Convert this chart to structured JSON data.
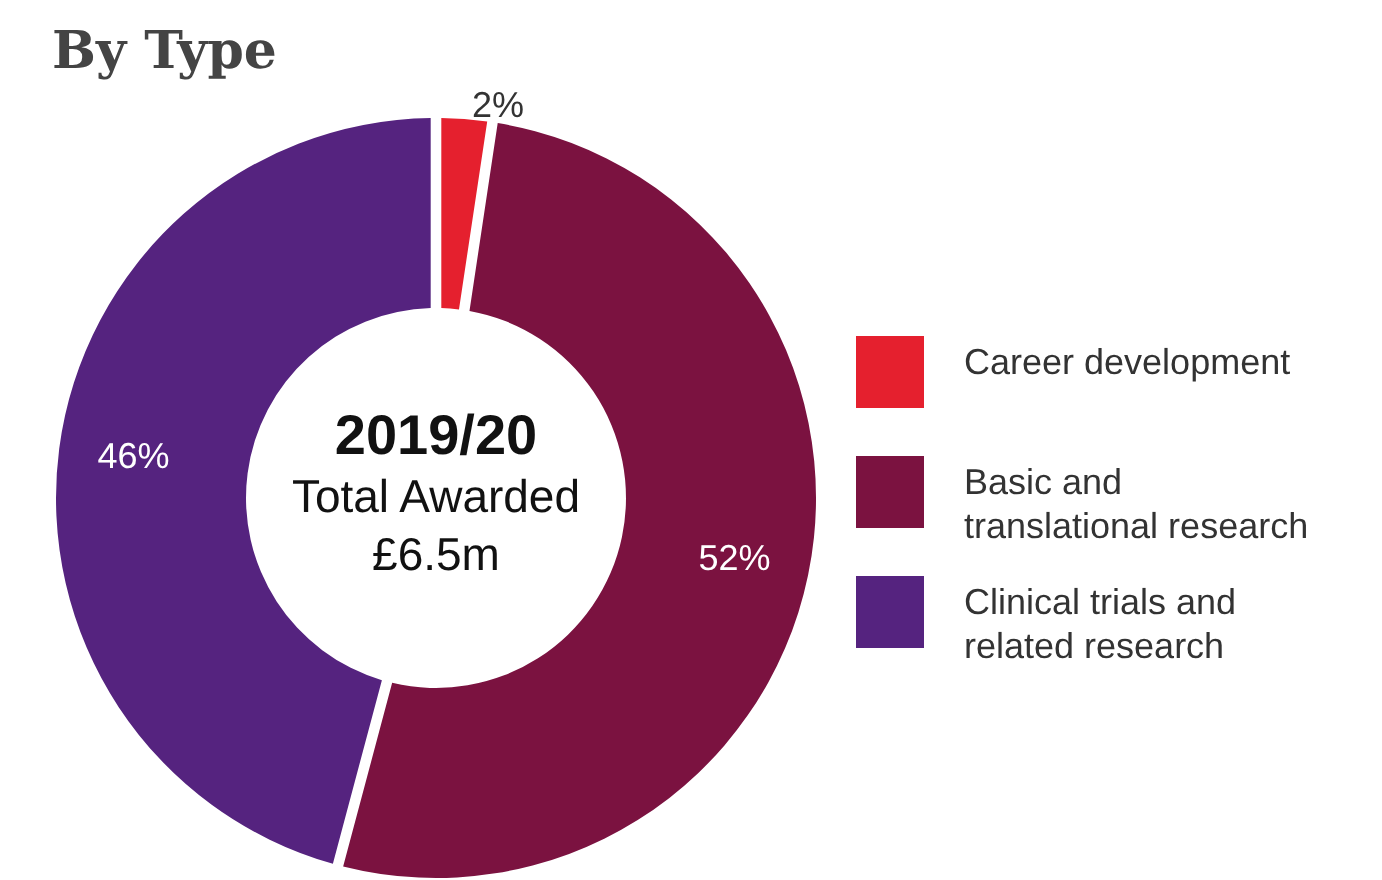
{
  "chart_data": {
    "type": "donut",
    "title": "By Type",
    "categories": [
      "Career development",
      "Basic and translational research",
      "Clinical trials and related research"
    ],
    "values": [
      2,
      52,
      46
    ],
    "colors": [
      "#e5202e",
      "#7b1240",
      "#55237f"
    ],
    "value_labels": [
      "2%",
      "52%",
      "46%"
    ],
    "legend": "right",
    "annotations": [
      "2019/20",
      "Total Awarded",
      "£6.5m"
    ]
  }
}
